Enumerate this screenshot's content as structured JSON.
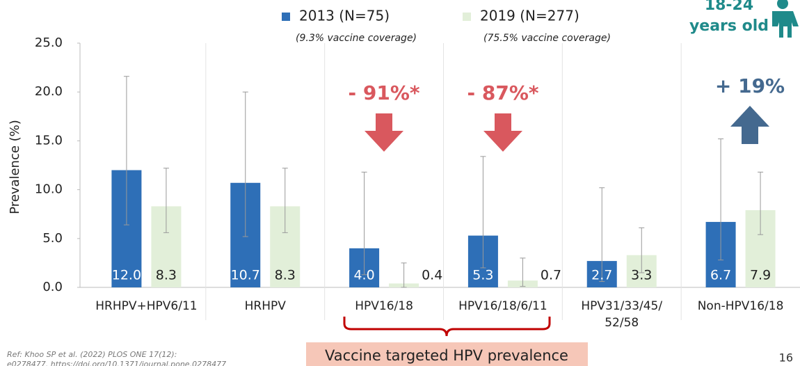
{
  "chart_data": {
    "type": "bar",
    "ylabel": "Prevalence (%)",
    "categories": [
      "HRHPV+HPV6/11",
      "HRHPV",
      "HPV16/18",
      "HPV16/18/6/11",
      "HPV31/33/45/\n52/58",
      "Non-HPV16/18"
    ],
    "series": [
      {
        "name": "2013 (N=75)",
        "note": "(9.3% vaccine coverage)",
        "color": "#2e6fb7",
        "values": [
          12,
          10.7,
          4,
          5.3,
          2.7,
          6.7
        ],
        "value_labels": [
          "12.0",
          "10.7",
          "4.0",
          "5.3",
          "2.7",
          "6.7"
        ],
        "error_low": [
          6.4,
          5.2,
          1.3,
          2.0,
          0.6,
          2.8
        ],
        "error_high": [
          21.6,
          20.0,
          11.8,
          13.4,
          10.2,
          15.2
        ]
      },
      {
        "name": "2019 (N=277)",
        "note": "(75.5% vaccine coverage)",
        "color": "#e2efd9",
        "values": [
          8.3,
          8.3,
          0.4,
          0.7,
          3.3,
          7.9
        ],
        "error_low": [
          5.6,
          5.6,
          0.0,
          0.1,
          1.5,
          5.4
        ],
        "error_high": [
          12.2,
          12.2,
          2.5,
          3.0,
          6.1,
          11.8
        ]
      }
    ],
    "ylim": [
      0,
      25
    ],
    "yticks": [
      {
        "value": 0,
        "label": "0.0"
      },
      {
        "value": 5,
        "label": "5.0"
      },
      {
        "value": 10,
        "label": "10.0"
      },
      {
        "value": 15,
        "label": "15.0"
      },
      {
        "value": 20,
        "label": "20.0"
      },
      {
        "value": 25,
        "label": "25.0"
      }
    ],
    "annotations": [
      "- 91%*",
      "- 87%*",
      "+ 19%"
    ]
  },
  "badge": [
    "18-24",
    "years old"
  ],
  "bracket_label": "Vaccine targeted HPV prevalence",
  "reference": [
    "Ref: Khoo SP et al. (2022) PLOS ONE 17(12):",
    "e0278477. https://doi.org/10.1371/journal.pone.0278477"
  ],
  "page_number": "16"
}
